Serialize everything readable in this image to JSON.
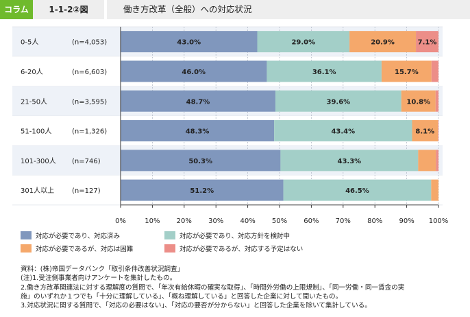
{
  "header": {
    "tag": "コラム",
    "figure": "1-1-2②図",
    "title": "働き方改革（全般）への対応状況"
  },
  "colors": {
    "done": "#8097bd",
    "considering": "#a3cfc8",
    "difficult": "#f5a86b",
    "no_plan": "#ec8e88",
    "row_even": "#eef2f8",
    "row_odd": "#ffffff"
  },
  "chart_data": {
    "type": "bar",
    "orientation": "horizontal",
    "stacked": true,
    "categories": [
      "0-5人",
      "6-20人",
      "21-50人",
      "51-100人",
      "101-300人",
      "301人以上"
    ],
    "sample_sizes": [
      "(n=4,053)",
      "(n=6,603)",
      "(n=3,595)",
      "(n=1,326)",
      "(n=746)",
      "(n=127)"
    ],
    "series": [
      {
        "name": "対応が必要であり、対応済み",
        "values": [
          43.0,
          46.0,
          48.7,
          48.3,
          50.3,
          51.2
        ],
        "labels": [
          "43.0%",
          "46.0%",
          "48.7%",
          "48.3%",
          "50.3%",
          "51.2%"
        ]
      },
      {
        "name": "対応が必要であり、対応方針を検討中",
        "values": [
          29.0,
          36.1,
          39.6,
          43.4,
          43.3,
          46.5
        ],
        "labels": [
          "29.0%",
          "36.1%",
          "39.6%",
          "43.4%",
          "43.3%",
          "46.5%"
        ]
      },
      {
        "name": "対応が必要であるが、対応は困難",
        "values": [
          20.9,
          15.7,
          10.8,
          8.1,
          5.6,
          2.3
        ],
        "labels": [
          "20.9%",
          "15.7%",
          "10.8%",
          "8.1%",
          "",
          ""
        ]
      },
      {
        "name": "対応が必要であるが、対応する予定はない",
        "values": [
          7.1,
          2.2,
          0.9,
          0.2,
          0.8,
          0.0
        ],
        "labels": [
          "7.1%",
          "",
          "",
          "",
          "",
          ""
        ]
      }
    ],
    "x_ticks": [
      "0%",
      "10%",
      "20%",
      "30%",
      "40%",
      "50%",
      "60%",
      "70%",
      "80%",
      "90%",
      "100%"
    ],
    "xlim": [
      0,
      100
    ],
    "legend_position": "bottom"
  },
  "notes": [
    "資料：(株)帝国データバンク「取引条件改善状況調査」",
    "(注)1.受注側事業者向けアンケートを集計したもの。",
    "2.働き方改革関連法に対する理解度の質問で、「年次有給休暇の確実な取得」、「時間外労働の上限規制」、「同一労働・同一賃金の実",
    "施」のいずれか１つでも「十分に理解している」、「概ね理解している」と回答した企業に対して聞いたもの。",
    "3.対応状況に関する質問で、「対応の必要はない」、「対応の要否が分からない」と回答した企業を除いて集計している。"
  ]
}
